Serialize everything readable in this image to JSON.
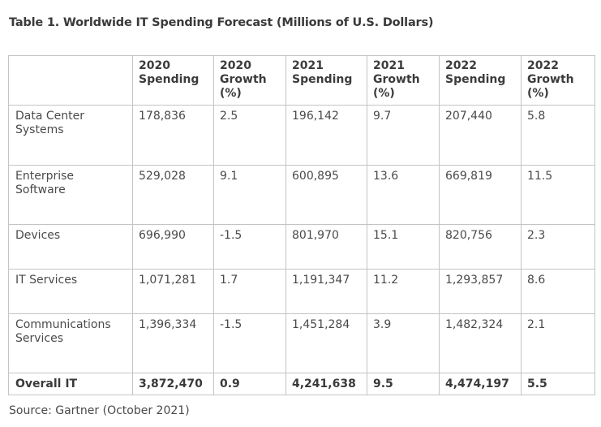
{
  "chart_data": {
    "type": "table",
    "title": "Table 1. Worldwide IT Spending Forecast (Millions of U.S. Dollars)",
    "columns": [
      "",
      "2020 Spending",
      "2020 Growth (%)",
      "2021 Spending",
      "2021 Growth (%)",
      "2022 Spending",
      "2022 Growth (%)"
    ],
    "rows": [
      [
        "Data Center Systems",
        "178,836",
        "2.5",
        "196,142",
        "9.7",
        "207,440",
        "5.8"
      ],
      [
        "Enterprise Software",
        "529,028",
        "9.1",
        "600,895",
        "13.6",
        "669,819",
        "11.5"
      ],
      [
        "Devices",
        "696,990",
        "-1.5",
        "801,970",
        "15.1",
        "820,756",
        "2.3"
      ],
      [
        "IT Services",
        "1,071,281",
        "1.7",
        "1,191,347",
        "11.2",
        "1,293,857",
        "8.6"
      ],
      [
        "Communications Services",
        "1,396,334",
        "-1.5",
        "1,451,284",
        "3.9",
        "1,482,324",
        "2.1"
      ],
      [
        "Overall IT",
        "3,872,470",
        "0.9",
        "4,241,638",
        "9.5",
        "4,474,197",
        "5.5"
      ]
    ],
    "source": "Source: Gartner (October 2021)"
  }
}
